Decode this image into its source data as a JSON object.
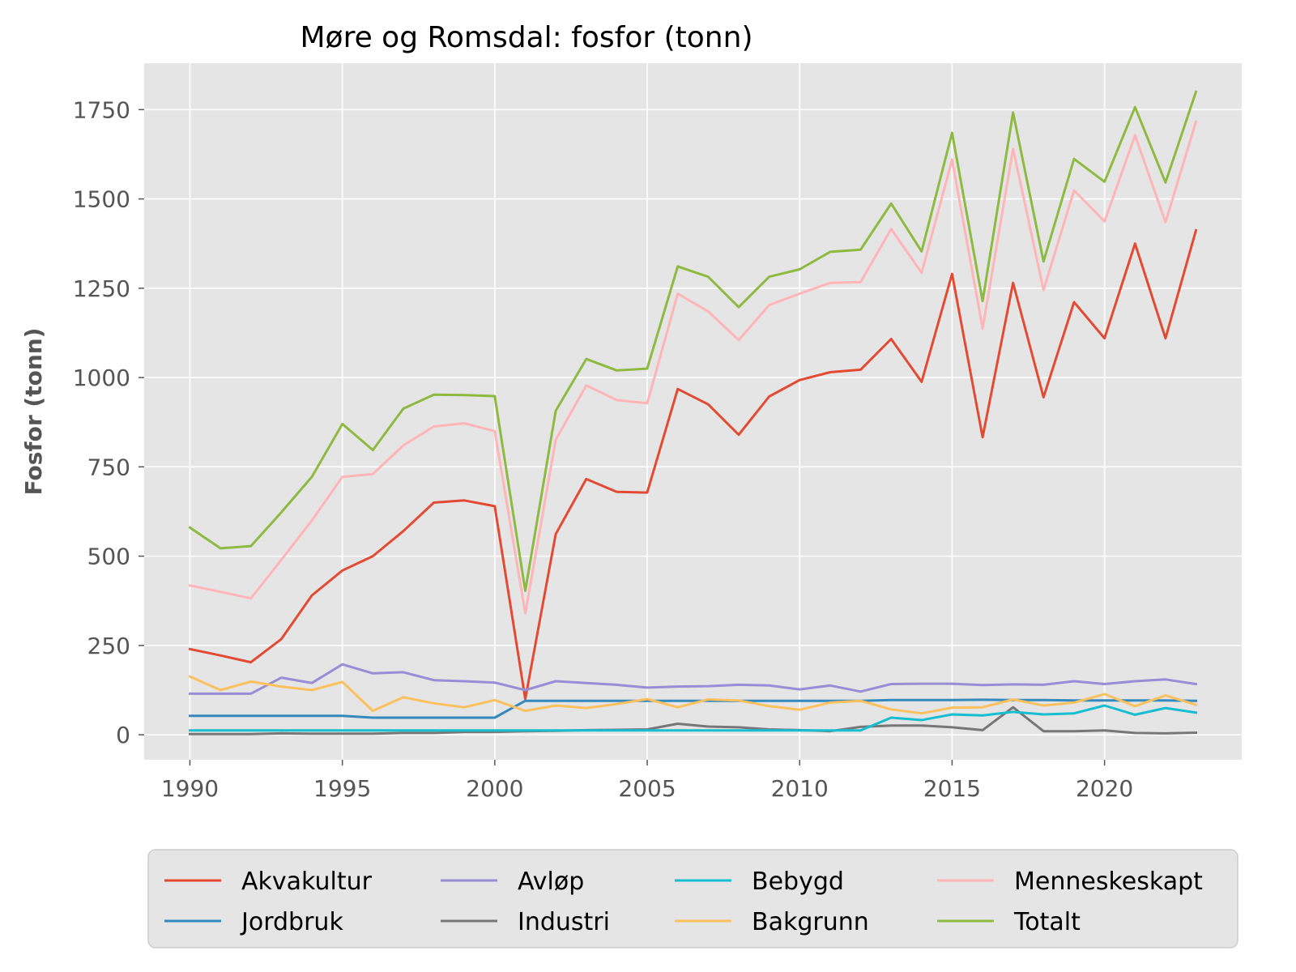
{
  "chart_data": {
    "type": "line",
    "title": "Møre og Romsdal: fosfor (tonn)",
    "xlabel": "",
    "ylabel": "Fosfor (tonn)",
    "xlim": [
      1988.5,
      2024.5
    ],
    "ylim": [
      -70,
      1880
    ],
    "xticks": [
      1990,
      1995,
      2000,
      2005,
      2010,
      2015,
      2020
    ],
    "yticks": [
      0,
      250,
      500,
      750,
      1000,
      1250,
      1500,
      1750
    ],
    "grid": true,
    "legend_position": "bottom",
    "x": [
      1990,
      1991,
      1992,
      1993,
      1994,
      1995,
      1996,
      1997,
      1998,
      1999,
      2000,
      2001,
      2002,
      2003,
      2004,
      2005,
      2006,
      2007,
      2008,
      2009,
      2010,
      2011,
      2012,
      2013,
      2014,
      2015,
      2016,
      2017,
      2018,
      2019,
      2020,
      2021,
      2022,
      2023
    ],
    "series": [
      {
        "name": "Akvakultur",
        "color": "#E24A33",
        "values": [
          240,
          222,
          203,
          268,
          390,
          460,
          500,
          570,
          650,
          656,
          640,
          100,
          562,
          716,
          680,
          678,
          968,
          925,
          840,
          947,
          993,
          1015,
          1022,
          1108,
          988,
          1290,
          833,
          1265,
          945,
          1211,
          1110,
          1375,
          1110,
          1412
        ]
      },
      {
        "name": "Jordbruk",
        "color": "#348ABD",
        "values": [
          53,
          53,
          53,
          53,
          53,
          53,
          48,
          48,
          48,
          48,
          48,
          95,
          95,
          95,
          95,
          95,
          95,
          95,
          95,
          95,
          95,
          95,
          95,
          97,
          97,
          97,
          98,
          97,
          97,
          96,
          96,
          96,
          96,
          95
        ]
      },
      {
        "name": "Avløp",
        "color": "#988ED5",
        "values": [
          115,
          115,
          115,
          160,
          145,
          197,
          172,
          175,
          153,
          150,
          146,
          125,
          150,
          145,
          140,
          132,
          135,
          136,
          140,
          138,
          127,
          138,
          121,
          142,
          143,
          143,
          139,
          141,
          140,
          150,
          142,
          150,
          155,
          142
        ]
      },
      {
        "name": "Industri",
        "color": "#777777",
        "values": [
          2,
          2,
          2,
          4,
          3,
          3,
          3,
          5,
          5,
          8,
          8,
          10,
          11,
          13,
          14,
          15,
          31,
          23,
          21,
          15,
          13,
          10,
          22,
          26,
          26,
          21,
          13,
          77,
          10,
          10,
          12,
          5,
          4,
          6
        ]
      },
      {
        "name": "Bebygd",
        "color": "#17BECF",
        "values": [
          12,
          12,
          12,
          12,
          12,
          12,
          12,
          12,
          12,
          12,
          12,
          12,
          12,
          12,
          12,
          12,
          12,
          12,
          12,
          12,
          12,
          12,
          12,
          48,
          41,
          57,
          54,
          64,
          57,
          60,
          82,
          56,
          75,
          62
        ]
      },
      {
        "name": "Bakgrunn",
        "color": "#FBC15E",
        "values": [
          163,
          125,
          149,
          135,
          125,
          148,
          67,
          105,
          88,
          77,
          97,
          67,
          82,
          75,
          86,
          100,
          77,
          99,
          96,
          80,
          70,
          90,
          95,
          71,
          60,
          76,
          77,
          99,
          82,
          90,
          114,
          80,
          110,
          84
        ]
      },
      {
        "name": "Menneskeskapt",
        "color": "#FFB5B8",
        "values": [
          418,
          400,
          382,
          490,
          600,
          722,
          730,
          810,
          863,
          872,
          850,
          340,
          826,
          978,
          937,
          928,
          1235,
          1185,
          1105,
          1203,
          1235,
          1265,
          1267,
          1416,
          1293,
          1610,
          1137,
          1640,
          1245,
          1524,
          1437,
          1678,
          1435,
          1716
        ]
      },
      {
        "name": "Totalt",
        "color": "#8EBA42",
        "values": [
          580,
          522,
          528,
          623,
          722,
          870,
          797,
          913,
          952,
          951,
          948,
          403,
          907,
          1052,
          1020,
          1025,
          1311,
          1282,
          1197,
          1282,
          1303,
          1352,
          1358,
          1487,
          1353,
          1685,
          1214,
          1742,
          1325,
          1612,
          1548,
          1757,
          1546,
          1800
        ]
      }
    ]
  }
}
